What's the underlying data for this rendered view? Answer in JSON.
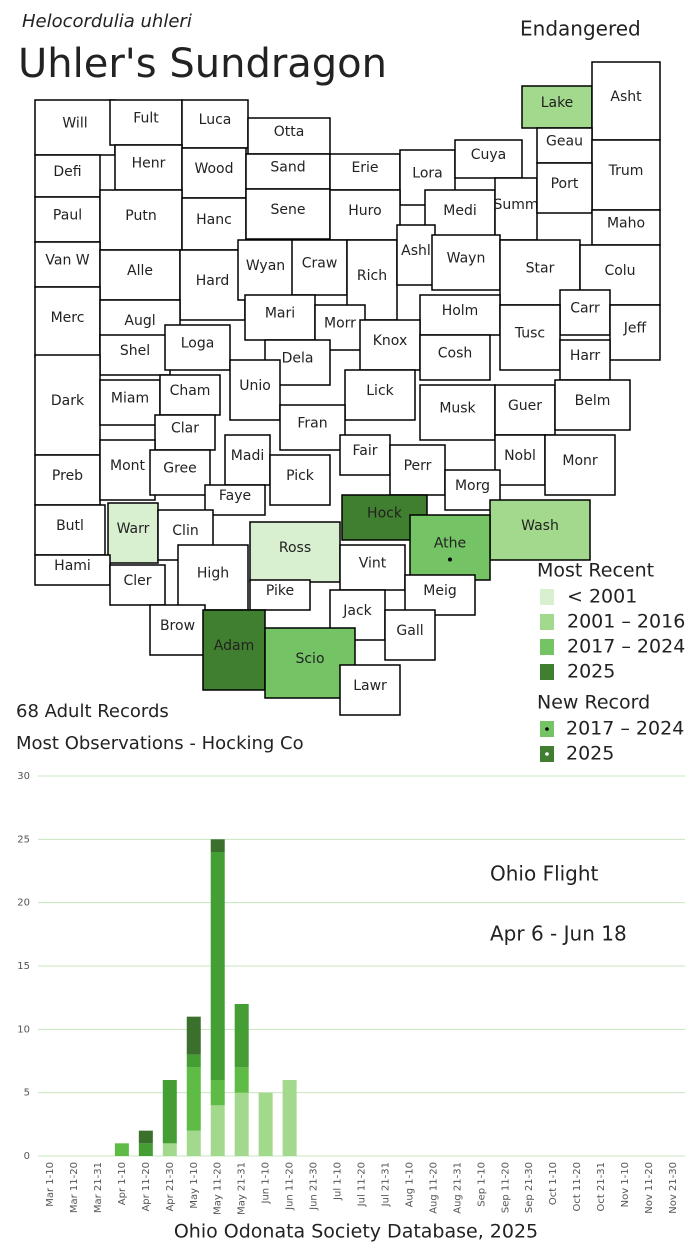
{
  "header": {
    "scientific_name": "Helocordulia uhleri",
    "common_name": "Uhler's Sundragon",
    "status": "Endangered"
  },
  "map": {
    "counties": [
      {
        "label": "Will"
      },
      {
        "label": "Fult"
      },
      {
        "label": "Luca"
      },
      {
        "label": "Otta"
      },
      {
        "label": "Defi"
      },
      {
        "label": "Henr"
      },
      {
        "label": "Wood"
      },
      {
        "label": "Sand"
      },
      {
        "label": "Erie"
      },
      {
        "label": "Lora"
      },
      {
        "label": "Cuya"
      },
      {
        "label": "Lake",
        "period": 1
      },
      {
        "label": "Asht"
      },
      {
        "label": "Geau"
      },
      {
        "label": "Trum"
      },
      {
        "label": "Paul"
      },
      {
        "label": "Putn"
      },
      {
        "label": "Hanc"
      },
      {
        "label": "Sene"
      },
      {
        "label": "Huro"
      },
      {
        "label": "Medi"
      },
      {
        "label": "Summ"
      },
      {
        "label": "Port"
      },
      {
        "label": "Maho"
      },
      {
        "label": "Van W"
      },
      {
        "label": "Alle"
      },
      {
        "label": "Hard"
      },
      {
        "label": "Wyan"
      },
      {
        "label": "Craw"
      },
      {
        "label": "Rich"
      },
      {
        "label": "Ashl"
      },
      {
        "label": "Wayn"
      },
      {
        "label": "Star"
      },
      {
        "label": "Colu"
      },
      {
        "label": "Merc"
      },
      {
        "label": "Augl"
      },
      {
        "label": "Mari"
      },
      {
        "label": "Morr"
      },
      {
        "label": "Holm"
      },
      {
        "label": "Carr"
      },
      {
        "label": "Tusc"
      },
      {
        "label": "Jeff"
      },
      {
        "label": "Shel"
      },
      {
        "label": "Loga"
      },
      {
        "label": "Dela"
      },
      {
        "label": "Knox"
      },
      {
        "label": "Cosh"
      },
      {
        "label": "Harr"
      },
      {
        "label": "Dark"
      },
      {
        "label": "Miam"
      },
      {
        "label": "Cham"
      },
      {
        "label": "Unio"
      },
      {
        "label": "Lick"
      },
      {
        "label": "Musk"
      },
      {
        "label": "Guer"
      },
      {
        "label": "Belm"
      },
      {
        "label": "Clar"
      },
      {
        "label": "Fran"
      },
      {
        "label": "Fair"
      },
      {
        "label": "Perr"
      },
      {
        "label": "Nobl"
      },
      {
        "label": "Monr"
      },
      {
        "label": "Preb"
      },
      {
        "label": "Mont"
      },
      {
        "label": "Gree"
      },
      {
        "label": "Madi"
      },
      {
        "label": "Pick"
      },
      {
        "label": "Morg"
      },
      {
        "label": "Faye"
      },
      {
        "label": "Butl"
      },
      {
        "label": "Warr",
        "period": 0
      },
      {
        "label": "Clin"
      },
      {
        "label": "Hock",
        "period": 3
      },
      {
        "label": "Wash",
        "period": 1
      },
      {
        "label": "Ross",
        "period": 0
      },
      {
        "label": "Athe",
        "period": 2,
        "new_record": 0
      },
      {
        "label": "Hami"
      },
      {
        "label": "Cler"
      },
      {
        "label": "High"
      },
      {
        "label": "Vint"
      },
      {
        "label": "Meig"
      },
      {
        "label": "Pike"
      },
      {
        "label": "Jack"
      },
      {
        "label": "Brow"
      },
      {
        "label": "Adam",
        "period": 3
      },
      {
        "label": "Scio",
        "period": 2
      },
      {
        "label": "Gall"
      },
      {
        "label": "Lawr"
      }
    ],
    "legend": {
      "most_recent": {
        "title": "Most Recent",
        "items": [
          {
            "label": "< 2001",
            "color": "#d8efd0"
          },
          {
            "label": "2001 – 2016",
            "color": "#a3d98c"
          },
          {
            "label": "2017 – 2024",
            "color": "#74c465"
          },
          {
            "label": "2025",
            "color": "#3f7f2f"
          }
        ]
      },
      "new_record": {
        "title": "New Record",
        "items": [
          {
            "label": "2017 – 2024",
            "color": "#74c465"
          },
          {
            "label": "2025",
            "color": "#3f7f2f"
          }
        ]
      }
    }
  },
  "stats": [
    "68 Adult Records",
    "Most Observations - Hocking Co"
  ],
  "chart_data": {
    "type": "bar",
    "stacked": true,
    "grid": true,
    "annotations": [
      "Ohio Flight",
      "Apr 6 - Jun 18"
    ],
    "categories": [
      "Mar 1-10",
      "Mar 11-20",
      "Mar 21-31",
      "Apr 1-10",
      "Apr 11-20",
      "Apr 21-30",
      "May 1-10",
      "May 11-20",
      "May 21-31",
      "Jun 1-10",
      "Jun 11-20",
      "Jun 21-30",
      "Jul 1-10",
      "Jul 11-20",
      "Jul 21-31",
      "Aug 1-10",
      "Aug 11-20",
      "Aug 21-31",
      "Sep 1-10",
      "Sep 11-20",
      "Sep 21-30",
      "Oct 1-10",
      "Oct 11-20",
      "Oct 21-31",
      "Nov 1-10",
      "Nov 11-20",
      "Nov 21-30"
    ],
    "series": [
      {
        "color": "#a3d98c",
        "values": [
          0,
          0,
          0,
          0,
          0,
          1,
          2,
          4,
          5,
          5,
          6,
          0,
          0,
          0,
          0,
          0,
          0,
          0,
          0,
          0,
          0,
          0,
          0,
          0,
          0,
          0,
          0
        ]
      },
      {
        "color": "#5dbb46",
        "values": [
          0,
          0,
          0,
          1,
          0,
          0,
          5,
          2,
          2,
          0,
          0,
          0,
          0,
          0,
          0,
          0,
          0,
          0,
          0,
          0,
          0,
          0,
          0,
          0,
          0,
          0,
          0
        ]
      },
      {
        "color": "#449e34",
        "values": [
          0,
          0,
          0,
          0,
          1,
          5,
          1,
          18,
          5,
          0,
          0,
          0,
          0,
          0,
          0,
          0,
          0,
          0,
          0,
          0,
          0,
          0,
          0,
          0,
          0,
          0,
          0
        ]
      },
      {
        "color": "#3a6f2c",
        "values": [
          0,
          0,
          0,
          0,
          1,
          0,
          3,
          1,
          0,
          0,
          0,
          0,
          0,
          0,
          0,
          0,
          0,
          0,
          0,
          0,
          0,
          0,
          0,
          0,
          0,
          0,
          0
        ]
      }
    ],
    "ylim": [
      0,
      30
    ],
    "yticks": [
      0,
      5,
      10,
      15,
      20,
      25,
      30
    ]
  },
  "footer": "Ohio Odonata Society Database, 2025"
}
